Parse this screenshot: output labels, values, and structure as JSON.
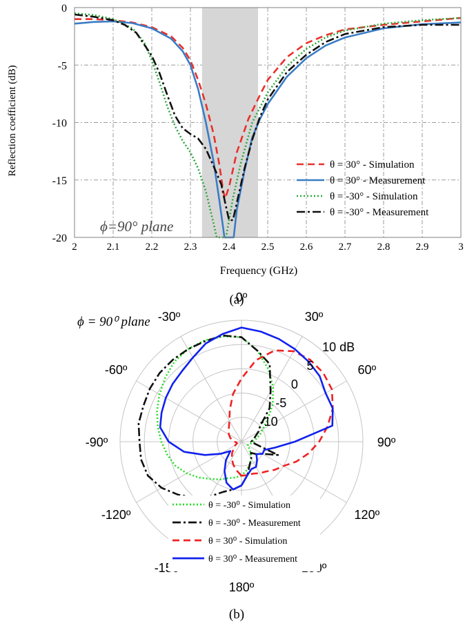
{
  "chart_data": [
    {
      "type": "line",
      "panel_label": "(a)",
      "xlabel": "Frequency (GHz)",
      "ylabel": "Reflection coefficient (dB)",
      "xlim": [
        2,
        3
      ],
      "ylim": [
        -20,
        0
      ],
      "x_ticks": [
        "2",
        "2.1",
        "2.2",
        "2.3",
        "2.4",
        "2.5",
        "2.6",
        "2.7",
        "2.8",
        "2.9",
        "3"
      ],
      "y_ticks": [
        "0",
        "-5",
        "-10",
        "-15",
        "-20"
      ],
      "grid": true,
      "annotation": "ϕ=90° plane",
      "shaded_band": [
        2.33,
        2.475
      ],
      "legend_position": "bottom-right",
      "series": [
        {
          "name": "θ = 30° - Simulation",
          "color": "#e8302a",
          "dash": "dashed",
          "points": [
            [
              2.0,
              -1.0
            ],
            [
              2.05,
              -1.0
            ],
            [
              2.1,
              -1.1
            ],
            [
              2.15,
              -1.3
            ],
            [
              2.2,
              -1.7
            ],
            [
              2.25,
              -2.5
            ],
            [
              2.28,
              -3.5
            ],
            [
              2.3,
              -4.6
            ],
            [
              2.32,
              -6.3
            ],
            [
              2.34,
              -8.4
            ],
            [
              2.36,
              -11.0
            ],
            [
              2.375,
              -13.7
            ],
            [
              2.385,
              -16.0
            ],
            [
              2.39,
              -16.6
            ],
            [
              2.4,
              -15.6
            ],
            [
              2.42,
              -12.6
            ],
            [
              2.45,
              -9.7
            ],
            [
              2.48,
              -7.6
            ],
            [
              2.5,
              -6.3
            ],
            [
              2.55,
              -4.3
            ],
            [
              2.6,
              -3.1
            ],
            [
              2.65,
              -2.4
            ],
            [
              2.7,
              -1.9
            ],
            [
              2.8,
              -1.5
            ],
            [
              2.9,
              -1.2
            ],
            [
              3.0,
              -0.9
            ]
          ]
        },
        {
          "name": "θ = 30° - Measurement",
          "color": "#3a7cc4",
          "dash": "solid",
          "points": [
            [
              2.0,
              -1.4
            ],
            [
              2.05,
              -1.25
            ],
            [
              2.1,
              -1.2
            ],
            [
              2.15,
              -1.35
            ],
            [
              2.2,
              -1.8
            ],
            [
              2.25,
              -2.7
            ],
            [
              2.28,
              -3.8
            ],
            [
              2.3,
              -5.0
            ],
            [
              2.32,
              -7.1
            ],
            [
              2.34,
              -10.0
            ],
            [
              2.36,
              -13.4
            ],
            [
              2.375,
              -16.8
            ],
            [
              2.388,
              -20.0
            ],
            [
              2.412,
              -20.0
            ],
            [
              2.42,
              -17.6
            ],
            [
              2.44,
              -14.2
            ],
            [
              2.46,
              -11.3
            ],
            [
              2.48,
              -9.7
            ],
            [
              2.5,
              -8.4
            ],
            [
              2.55,
              -6.0
            ],
            [
              2.6,
              -4.4
            ],
            [
              2.65,
              -3.3
            ],
            [
              2.7,
              -2.6
            ],
            [
              2.8,
              -1.8
            ],
            [
              2.9,
              -1.45
            ],
            [
              3.0,
              -1.3
            ]
          ]
        },
        {
          "name": "θ = -30° - Simulation",
          "color": "#2ca63a",
          "dash": "dotted",
          "points": [
            [
              2.0,
              -0.5
            ],
            [
              2.05,
              -0.65
            ],
            [
              2.1,
              -1.0
            ],
            [
              2.15,
              -1.8
            ],
            [
              2.18,
              -3.0
            ],
            [
              2.2,
              -4.6
            ],
            [
              2.22,
              -6.5
            ],
            [
              2.24,
              -8.6
            ],
            [
              2.26,
              -10.3
            ],
            [
              2.28,
              -11.6
            ],
            [
              2.3,
              -12.6
            ],
            [
              2.32,
              -14.0
            ],
            [
              2.34,
              -16.0
            ],
            [
              2.36,
              -18.8
            ],
            [
              2.368,
              -20.0
            ],
            [
              2.392,
              -20.0
            ],
            [
              2.41,
              -16.6
            ],
            [
              2.43,
              -13.6
            ],
            [
              2.46,
              -10.0
            ],
            [
              2.5,
              -7.4
            ],
            [
              2.55,
              -5.1
            ],
            [
              2.6,
              -3.6
            ],
            [
              2.65,
              -2.6
            ],
            [
              2.7,
              -2.0
            ],
            [
              2.8,
              -1.4
            ],
            [
              2.9,
              -1.1
            ],
            [
              3.0,
              -0.9
            ]
          ]
        },
        {
          "name": "θ = -30° - Measurement",
          "color": "#111111",
          "dash": "dashdot",
          "points": [
            [
              2.0,
              -0.6
            ],
            [
              2.05,
              -0.8
            ],
            [
              2.1,
              -1.1
            ],
            [
              2.13,
              -1.5
            ],
            [
              2.16,
              -2.2
            ],
            [
              2.2,
              -4.2
            ],
            [
              2.22,
              -5.7
            ],
            [
              2.24,
              -7.6
            ],
            [
              2.26,
              -9.4
            ],
            [
              2.28,
              -10.5
            ],
            [
              2.3,
              -11.0
            ],
            [
              2.32,
              -11.4
            ],
            [
              2.34,
              -12.3
            ],
            [
              2.36,
              -13.8
            ],
            [
              2.38,
              -15.4
            ],
            [
              2.39,
              -17.0
            ],
            [
              2.4,
              -18.5
            ],
            [
              2.41,
              -18.5
            ],
            [
              2.42,
              -17.0
            ],
            [
              2.44,
              -14.0
            ],
            [
              2.46,
              -11.5
            ],
            [
              2.48,
              -9.5
            ],
            [
              2.5,
              -8.0
            ],
            [
              2.55,
              -5.6
            ],
            [
              2.6,
              -4.1
            ],
            [
              2.65,
              -3.0
            ],
            [
              2.7,
              -2.3
            ],
            [
              2.8,
              -1.7
            ],
            [
              2.9,
              -1.5
            ],
            [
              3.0,
              -1.5
            ]
          ]
        }
      ]
    },
    {
      "type": "polar",
      "panel_label": "(b)",
      "annotation": "ϕ = 90⁰ plane",
      "r_ticks": [
        "10 dB",
        "5",
        "0",
        "-5",
        "-10"
      ],
      "r_values": [
        10,
        5,
        0,
        -5,
        -10
      ],
      "r_min": -15,
      "angle_labels": [
        {
          "deg": 0,
          "text": "0º"
        },
        {
          "deg": 30,
          "text": "30º"
        },
        {
          "deg": 60,
          "text": "60º"
        },
        {
          "deg": 90,
          "text": "90º"
        },
        {
          "deg": 120,
          "text": "120º"
        },
        {
          "deg": 150,
          "text": "150º"
        },
        {
          "deg": 180,
          "text": "180º"
        },
        {
          "deg": -150,
          "text": "-150º"
        },
        {
          "deg": -120,
          "text": "-120º"
        },
        {
          "deg": -90,
          "text": "-90º"
        },
        {
          "deg": -60,
          "text": "-60º"
        },
        {
          "deg": -30,
          "text": "-30º"
        }
      ],
      "legend_position": "bottom-center",
      "series": [
        {
          "name": "θ = -30⁰ - Simulation",
          "color": "#22dd22",
          "dash": "dotted",
          "theta_deg": [
            -180,
            -170,
            -160,
            -150,
            -140,
            -130,
            -120,
            -110,
            -100,
            -90,
            -80,
            -70,
            -60,
            -50,
            -40,
            -30,
            -20,
            -10,
            0,
            10,
            20,
            30,
            40,
            50,
            60,
            70,
            80,
            90,
            100,
            110,
            120,
            130,
            140,
            150,
            160,
            170,
            180
          ],
          "gain_db": [
            -8,
            -7.5,
            -7,
            -6,
            -5,
            -3.5,
            -2,
            -0.5,
            0.5,
            1.5,
            2.5,
            3.5,
            4.5,
            5.5,
            6.5,
            7,
            7.2,
            7,
            6.5,
            4,
            1,
            -2,
            -5,
            -8,
            -10,
            -11,
            -12,
            -12.5,
            -13,
            -13.5,
            -13.5,
            -13,
            -12,
            -11,
            -10,
            -9,
            -8
          ]
        },
        {
          "name": "θ = -30⁰ - Measurement",
          "color": "#111111",
          "dash": "dashdot",
          "theta_deg": [
            -180,
            -170,
            -160,
            -150,
            -140,
            -130,
            -120,
            -110,
            -100,
            -90,
            -80,
            -70,
            -60,
            -50,
            -40,
            -30,
            -20,
            -10,
            0,
            10,
            20,
            30,
            40,
            50,
            60,
            70,
            80,
            90,
            100,
            110,
            120,
            130,
            140,
            150,
            160,
            170,
            180
          ],
          "gain_db": [
            -6,
            -5,
            -4,
            -2,
            0,
            2,
            4,
            5.5,
            6,
            6,
            6.5,
            6.5,
            6.8,
            7,
            7,
            7,
            7,
            7.2,
            6.5,
            4,
            2,
            -3,
            -6,
            -10,
            -11,
            -12,
            -12.5,
            -13,
            -12,
            -7,
            -10,
            -11,
            -12,
            -11,
            -10,
            -8,
            -6
          ]
        },
        {
          "name": "θ = 30⁰ - Simulation",
          "color": "#ee2222",
          "dash": "dashed",
          "theta_deg": [
            -180,
            -170,
            -160,
            -150,
            -140,
            -130,
            -120,
            -110,
            -100,
            -90,
            -80,
            -70,
            -60,
            -50,
            -40,
            -30,
            -20,
            -10,
            0,
            10,
            20,
            30,
            40,
            50,
            60,
            70,
            80,
            90,
            100,
            110,
            120,
            130,
            140,
            150,
            160,
            170,
            180
          ],
          "gain_db": [
            -8,
            -9,
            -10,
            -11,
            -12,
            -13,
            -13.5,
            -14,
            -14,
            -13.5,
            -13,
            -12.5,
            -12,
            -11.5,
            -11,
            -10,
            -8,
            -5,
            -2,
            2,
            5,
            6.5,
            7,
            7,
            6.5,
            5,
            3,
            1,
            -1,
            -3,
            -5,
            -6,
            -7,
            -7.5,
            -8,
            -8,
            -8
          ]
        },
        {
          "name": "θ = 30⁰ - Measurement",
          "color": "#1122ee",
          "dash": "solid",
          "theta_deg": [
            -180,
            -170,
            -160,
            -150,
            -140,
            -130,
            -120,
            -110,
            -100,
            -90,
            -80,
            -70,
            -60,
            -50,
            -40,
            -30,
            -20,
            -10,
            0,
            10,
            20,
            30,
            40,
            50,
            60,
            70,
            80,
            90,
            100,
            110,
            120,
            130,
            140,
            150,
            160,
            170,
            180
          ],
          "gain_db": [
            -6,
            -5,
            -6,
            -8,
            -10,
            -12,
            -10,
            -7,
            -3,
            0,
            2,
            2.5,
            3,
            3.5,
            4,
            5,
            6.5,
            7.5,
            8.5,
            8,
            7.5,
            7,
            6.5,
            6,
            5,
            5,
            4,
            -4,
            -8,
            -10,
            -10,
            -11,
            -10,
            -9,
            -9,
            -8,
            -6
          ]
        }
      ]
    }
  ]
}
